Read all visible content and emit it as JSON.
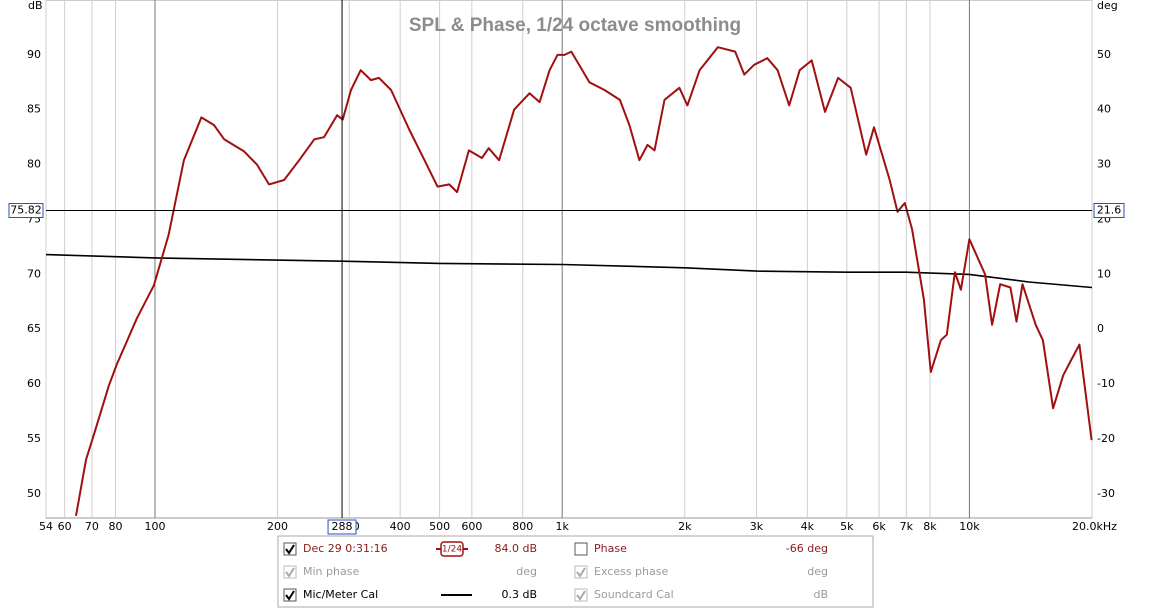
{
  "chart_data": {
    "type": "line",
    "title": "SPL & Phase, 1/24 octave smoothing",
    "ylabel": "dB",
    "y2label": "deg",
    "xscale": "log",
    "xlim": [
      54,
      20000
    ],
    "ylim": [
      47.8,
      95
    ],
    "y2lim": [
      -34.4,
      60
    ],
    "xgrid": true,
    "xticks": [
      54,
      60,
      70,
      80,
      100,
      200,
      300,
      400,
      500,
      600,
      800,
      {
        "value": 1000,
        "label": "1k"
      },
      {
        "value": 2000,
        "label": "2k"
      },
      {
        "value": 3000,
        "label": "3k"
      },
      {
        "value": 4000,
        "label": "4k"
      },
      {
        "value": 5000,
        "label": "5k"
      },
      {
        "value": 6000,
        "label": "6k"
      },
      {
        "value": 7000,
        "label": "7k"
      },
      {
        "value": 8000,
        "label": "8k"
      },
      {
        "value": 10000,
        "label": "10k"
      },
      {
        "value": 20000,
        "label": "20.0kHz"
      }
    ],
    "yticks": [
      50,
      55,
      60,
      65,
      70,
      75,
      80,
      85,
      90
    ],
    "y2ticks": [
      -30,
      -20,
      -10,
      0,
      10,
      20,
      30,
      40,
      50
    ],
    "cursor": {
      "x": 288,
      "y": 75.82,
      "y2": 21.6
    },
    "series": [
      {
        "name": "Dec 29 0:31:16",
        "color": "#a01010",
        "x": [
          64,
          67.7,
          70.8,
          77.1,
          80.6,
          90.3,
          99.4,
          108,
          117.8,
          130,
          139.6,
          148,
          165.5,
          178,
          190.6,
          207.5,
          226,
          246,
          260,
          280,
          289,
          303,
          320,
          339,
          355,
          380,
          421,
          459,
          494,
          528,
          552,
          590,
          635,
          660,
          700,
          762,
          831,
          880,
          931,
          974,
          1013,
          1053,
          1166,
          1270,
          1386,
          1462,
          1547,
          1620,
          1685,
          1783,
          1940,
          2030,
          2175,
          2410,
          2660,
          2800,
          2960,
          3190,
          3380,
          3610,
          3830,
          4100,
          4420,
          4760,
          5110,
          5580,
          5830,
          6370,
          6660,
          6940,
          7230,
          7730,
          8040,
          8510,
          8800,
          9210,
          9530,
          10000,
          10930,
          11370,
          11900,
          12610,
          13050,
          13500,
          14550,
          15150,
          16050,
          16990,
          17780,
          18620,
          19950
        ],
        "values": [
          48,
          53.1,
          55.4,
          59.9,
          61.8,
          66,
          69,
          73.6,
          80.4,
          84.3,
          83.6,
          82.3,
          81.2,
          80,
          78.2,
          78.6,
          80.4,
          82.3,
          82.5,
          84.5,
          84.1,
          86.8,
          88.6,
          87.7,
          87.9,
          86.8,
          83.2,
          80.4,
          78,
          78.2,
          77.5,
          81.3,
          80.6,
          81.5,
          80.4,
          85,
          86.5,
          85.7,
          88.6,
          90,
          90,
          90.3,
          87.5,
          86.8,
          85.9,
          83.6,
          80.4,
          81.8,
          81.3,
          85.9,
          87,
          85.4,
          88.6,
          90.7,
          90.3,
          88.2,
          89.1,
          89.7,
          88.6,
          85.4,
          88.6,
          89.5,
          84.8,
          87.9,
          87,
          80.9,
          83.4,
          78.6,
          75.7,
          76.5,
          74.1,
          67.7,
          61.1,
          64,
          64.5,
          70.2,
          68.6,
          73.2,
          70,
          65.4,
          69.1,
          68.8,
          65.7,
          69.1,
          65.4,
          64,
          57.8,
          60.8,
          62.2,
          63.6,
          54.9
        ]
      },
      {
        "name": "Mic/Meter Cal",
        "color": "#000000",
        "x": [
          54,
          100,
          288,
          500,
          1000,
          2000,
          3000,
          5000,
          7000,
          10000,
          14000,
          20000
        ],
        "values": [
          71.8,
          71.5,
          71.2,
          71,
          70.9,
          70.6,
          70.3,
          70.2,
          70.2,
          70,
          69.3,
          68.8
        ]
      }
    ],
    "legend": {
      "series0": {
        "checked": true,
        "smoothing": "1/24",
        "value": "84.0 dB"
      },
      "series1": {
        "checked": true,
        "value": "0.3 dB"
      },
      "others": [
        {
          "name": "Phase",
          "checked": false,
          "enabled": true,
          "value": "-66 deg"
        },
        {
          "name": "Min phase",
          "checked": true,
          "enabled": false,
          "value": "deg"
        },
        {
          "name": "Excess phase",
          "checked": true,
          "enabled": false,
          "value": "deg"
        },
        {
          "name": "Soundcard Cal",
          "checked": true,
          "enabled": false,
          "value": "dB"
        }
      ]
    }
  }
}
